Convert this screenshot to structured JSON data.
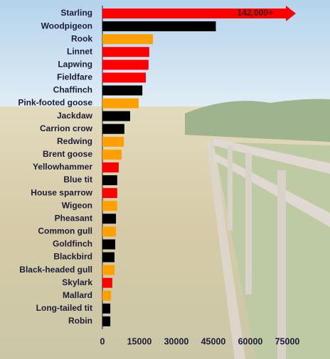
{
  "chart_data": {
    "type": "barh",
    "categories": [
      "Starling",
      "Woodpigeon",
      "Rook",
      "Linnet",
      "Lapwing",
      "Fieldfare",
      "Chaffinch",
      "Pink-footed goose",
      "Jackdaw",
      "Carrion crow",
      "Redwing",
      "Brent goose",
      "Yellowhammer",
      "Blue tit",
      "House sparrow",
      "Wigeon",
      "Pheasant",
      "Common gull",
      "Goldfinch",
      "Blackbird",
      "Black-headed gull",
      "Skylark",
      "Mallard",
      "Long-tailed tit",
      "Robin"
    ],
    "values": [
      142000,
      46000,
      20500,
      19000,
      18700,
      17600,
      16200,
      14700,
      11250,
      8900,
      8700,
      7800,
      6600,
      6000,
      6000,
      6000,
      5500,
      5500,
      5200,
      4900,
      4900,
      4000,
      3500,
      3200,
      3200
    ],
    "value_labels": [
      "142,000+",
      null,
      null,
      null,
      null,
      null,
      null,
      null,
      null,
      null,
      null,
      null,
      null,
      null,
      null,
      null,
      null,
      null,
      null,
      null,
      null,
      null,
      null,
      null,
      null
    ],
    "colors": [
      "#ff0000",
      "#000000",
      "#ffa000",
      "#ff0000",
      "#ff0000",
      "#ff0000",
      "#000000",
      "#ffa000",
      "#000000",
      "#000000",
      "#ffa000",
      "#ffa000",
      "#ff0000",
      "#000000",
      "#ff0000",
      "#ffa000",
      "#000000",
      "#ffa000",
      "#000000",
      "#000000",
      "#ffa000",
      "#ff0000",
      "#ffa000",
      "#000000",
      "#000000"
    ],
    "xlim": [
      0,
      75000
    ],
    "xticks": [
      0,
      15000,
      30000,
      45000,
      60000,
      75000
    ]
  }
}
